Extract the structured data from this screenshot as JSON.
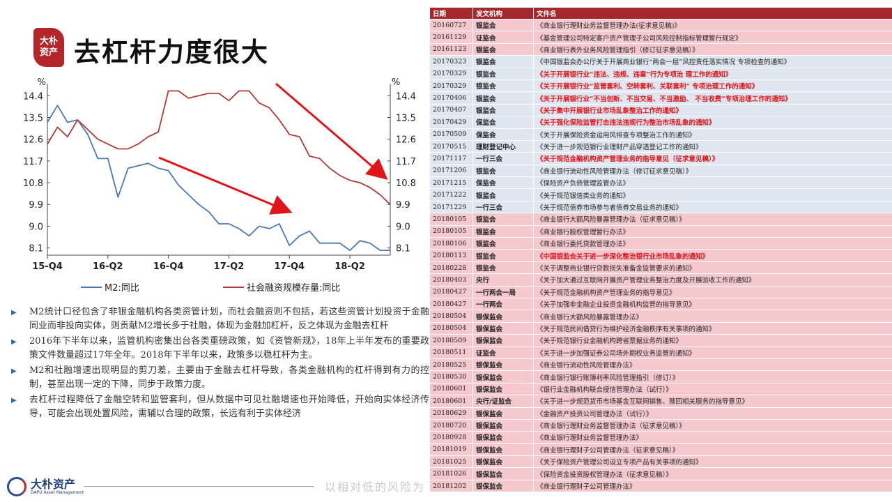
{
  "header": {
    "seal_line1": "大朴",
    "seal_line2": "资产",
    "title": "去杠杆力度很大"
  },
  "chart_data": {
    "type": "line",
    "x_tick_labels": [
      "15-Q4",
      "16-Q2",
      "16-Q4",
      "17-Q2",
      "17-Q4",
      "18-Q2"
    ],
    "y_unit_left": "%",
    "y_unit_right": "%",
    "yticks": [
      8.1,
      9.0,
      9.9,
      10.8,
      11.7,
      12.6,
      13.5,
      14.4
    ],
    "ylim": [
      7.8,
      14.9
    ],
    "grid": false,
    "legend_position": "bottom",
    "series": [
      {
        "name": "M2:同比",
        "color": "#4a78b5",
        "values": [
          13.3,
          14.0,
          13.3,
          13.4,
          12.8,
          11.8,
          11.8,
          10.2,
          11.4,
          11.5,
          11.6,
          11.4,
          11.3,
          10.7,
          10.3,
          9.9,
          9.6,
          9.1,
          9.1,
          8.9,
          8.6,
          9.0,
          8.9,
          9.1,
          8.2,
          8.6,
          8.8,
          8.3,
          8.3,
          8.3,
          8.0,
          8.4,
          8.3,
          8.0,
          8.0
        ]
      },
      {
        "name": "社会融资规模存量:同比",
        "color": "#b23a38",
        "values": [
          12.4,
          13.1,
          12.7,
          13.4,
          13.0,
          12.6,
          12.4,
          12.2,
          12.2,
          12.4,
          12.7,
          12.9,
          14.6,
          14.6,
          14.3,
          14.4,
          14.5,
          14.5,
          14.2,
          14.6,
          14.6,
          14.1,
          13.9,
          13.4,
          12.8,
          12.7,
          11.9,
          11.8,
          11.4,
          11.1,
          10.9,
          10.8,
          10.6,
          10.3,
          9.9
        ]
      }
    ]
  },
  "bullets": [
    "M2统计口径包含了非银金融机构各类资管计划，而社会融资则不包括，若这些资管计划投资于金融同业而非投向实体，则贡献M2增长多于社融，体现为金融加杠杆，反之体现为金融去杠杆",
    "2016年下半年以来，监管机构密集出台各类重磅政策，如《资管新规》，18年上半年发布的重要政策文件数量超过17年全年。2018年下半年以来，政策多以稳杠杆为主。",
    "M2和社融增速出现明显的剪刀差，主要由于金融去杠杆导致，各类金融机构的杠杆得到有力的控制，甚至出现一定的下降，同步于政策力度。",
    "去杠杆过程降低了金融空转和监管套利，但从数据中可见社融增速也开始降低，开始向实体经济传导，可能会出现处置风险，需辅以合理的政策，长远有利于实体经济"
  ],
  "footer": {
    "logo_cn": "大朴资产",
    "logo_en": "DAPU Asset Management",
    "watermark": "以相对低的风险为"
  },
  "table": {
    "headers": [
      "日期",
      "发文机构",
      "文件名"
    ],
    "rows": [
      {
        "date": "20160727",
        "org": "银监会",
        "doc": "《商业银行理财业务监督管理办法(征求意见稿)》",
        "hl": false,
        "bg": "pink"
      },
      {
        "date": "20161129",
        "org": "证监会",
        "doc": "《基金管理公司特定客户资产管理子公司风险控制指标管理暂行规定》",
        "hl": false,
        "bg": "pink"
      },
      {
        "date": "20161123",
        "org": "银监会",
        "doc": "《商业银行表外业务风险管理指引（修订征求意见稿）》",
        "hl": false,
        "bg": "pink"
      },
      {
        "date": "20170323",
        "org": "银监会",
        "doc": "《中国银监会办公厅关于开展商业银行“两会一层”风控责任落实情况 专项检查的通知》",
        "hl": false,
        "bg": "blue"
      },
      {
        "date": "20170329",
        "org": "银监会",
        "doc": "《关于开展银行业“违法、违规、违章”行为专项治 理工作的通知》",
        "hl": true,
        "bg": "blue"
      },
      {
        "date": "20170329",
        "org": "银监会",
        "doc": "《关于开展银行业“监管套利、空转套利、关联套利” 专项治理工作的通知》",
        "hl": true,
        "bg": "blue"
      },
      {
        "date": "20170406",
        "org": "银监会",
        "doc": "《关于开展银行业“不当创新、不当交易、不当激励、 不当收费”专项治理工作的通知》",
        "hl": true,
        "bg": "blue"
      },
      {
        "date": "20170407",
        "org": "银监会",
        "doc": "《关于集中开展银行业市场乱象整治工作的通知》",
        "hl": true,
        "bg": "blue"
      },
      {
        "date": "20170429",
        "org": "保监会",
        "doc": "《关于强化保险监管打击违法违规行为整治市场乱象的通知》",
        "hl": true,
        "bg": "blue"
      },
      {
        "date": "20170509",
        "org": "保监会",
        "doc": "《关于开展保险资金运用风排查专项整治工作的通知》",
        "hl": false,
        "bg": "blue"
      },
      {
        "date": "20170515",
        "org": "理财登记中心",
        "doc": "《关于进一步规范银行业理财产品穿透登记工作的通知》",
        "hl": false,
        "bg": "blue"
      },
      {
        "date": "20171117",
        "org": "一行三会",
        "doc": "《关于规范金融机构资产管理业务的指导意见（征求意见稿）》",
        "hl": true,
        "bg": "blue"
      },
      {
        "date": "20171206",
        "org": "银监会",
        "doc": "《商业银行流动性风险管理办法（修订征求意见稿）》",
        "hl": false,
        "bg": "blue"
      },
      {
        "date": "20171215",
        "org": "保监会",
        "doc": "《保险资产负债管理监管办法》",
        "hl": false,
        "bg": "blue"
      },
      {
        "date": "20171222",
        "org": "银监会",
        "doc": "《关于规范银信类业务的通知》",
        "hl": false,
        "bg": "blue"
      },
      {
        "date": "20171229",
        "org": "一行三会",
        "doc": "《关于规范债券市场参与者债券交易业务的通知》",
        "hl": false,
        "bg": "blue"
      },
      {
        "date": "20180105",
        "org": "银监会",
        "doc": "《商业银行大额风险暴露管理办法（征求意见稿）》",
        "hl": false,
        "bg": "pink"
      },
      {
        "date": "20180105",
        "org": "银监会",
        "doc": "《商业银行股权管理暂行办法》",
        "hl": false,
        "bg": "pink"
      },
      {
        "date": "20180106",
        "org": "银监会",
        "doc": "《商业银行委托贷款管理办法》",
        "hl": false,
        "bg": "pink"
      },
      {
        "date": "20180113",
        "org": "银监会",
        "doc": "《中国银监会关于进一步深化整治银行业市场乱象的通知》",
        "hl": true,
        "bg": "pink"
      },
      {
        "date": "20180228",
        "org": "银监会",
        "doc": "《关于调整商业银行贷款损失准备金监管要求的通知》",
        "hl": false,
        "bg": "pink"
      },
      {
        "date": "20180403",
        "org": "央行",
        "doc": "《关于加大通过互联网开展资产管理业务整治力度及开展验收工作的通知》",
        "hl": false,
        "bg": "pink"
      },
      {
        "date": "20180427",
        "org": "一行两会一局",
        "doc": "《关于规范金融机构资产管理业务的指导意见》",
        "hl": false,
        "bg": "pink"
      },
      {
        "date": "20180427",
        "org": "一行两会",
        "doc": "《关于加强非金融企业投资金融机构监管的指导意见》",
        "hl": false,
        "bg": "pink"
      },
      {
        "date": "20180504",
        "org": "银保监会",
        "doc": "《商业银行大额风险暴露管理办法》",
        "hl": false,
        "bg": "pink"
      },
      {
        "date": "20180504",
        "org": "银保监会",
        "doc": "《关于规范民间借贷行为维护经济金融秩序有关事项的通知》",
        "hl": false,
        "bg": "pink"
      },
      {
        "date": "20180509",
        "org": "银保监会",
        "doc": "《关于规范银行业金融机构跨省票据业务的通知》",
        "hl": false,
        "bg": "pink"
      },
      {
        "date": "20180511",
        "org": "证监会",
        "doc": "《关于进一步加强证券公司场外期权业务监管的通知》",
        "hl": false,
        "bg": "pink"
      },
      {
        "date": "20180525",
        "org": "银保监会",
        "doc": "《商业银行流动性风险管理办法》",
        "hl": false,
        "bg": "pink"
      },
      {
        "date": "20180530",
        "org": "银保监会",
        "doc": "《商业银行银行账簿利率风险管理指引（修订）》",
        "hl": false,
        "bg": "pink"
      },
      {
        "date": "20180601",
        "org": "银保监会",
        "doc": "《银行业金融机构联合授信管理办法（试行）》",
        "hl": false,
        "bg": "pink"
      },
      {
        "date": "20180601",
        "org": "央行/证监会",
        "doc": "《关于进一步规范货币市场基金互联网销售、赎回相关服务的指导意见》",
        "hl": false,
        "bg": "pink"
      },
      {
        "date": "20180629",
        "org": "银保监会",
        "doc": "《金融资产投资公司管理办法（试行）》",
        "hl": false,
        "bg": "pink"
      },
      {
        "date": "20180720",
        "org": "银保监会",
        "doc": "《商业银行理财业务监督管理办法（征求意见稿）》",
        "hl": false,
        "bg": "pink"
      },
      {
        "date": "20180928",
        "org": "银保监会",
        "doc": "《商业银行理财业务监督管理办法》",
        "hl": false,
        "bg": "pink"
      },
      {
        "date": "20181019",
        "org": "银保监会",
        "doc": "《商业银行理财子公司管理办法（征求意见稿）》",
        "hl": false,
        "bg": "pink"
      },
      {
        "date": "20181025",
        "org": "银保监会",
        "doc": "《关于保险资产管理公司设立专项产品有关事项的通知》",
        "hl": false,
        "bg": "pink"
      },
      {
        "date": "20181026",
        "org": "银保监会",
        "doc": "《保险资金投资股权管理办法（征求意见稿）》",
        "hl": false,
        "bg": "pink"
      },
      {
        "date": "20181202",
        "org": "银保监会",
        "doc": "《商业银行理财子公司管理办法》",
        "hl": false,
        "bg": "pink"
      }
    ]
  }
}
